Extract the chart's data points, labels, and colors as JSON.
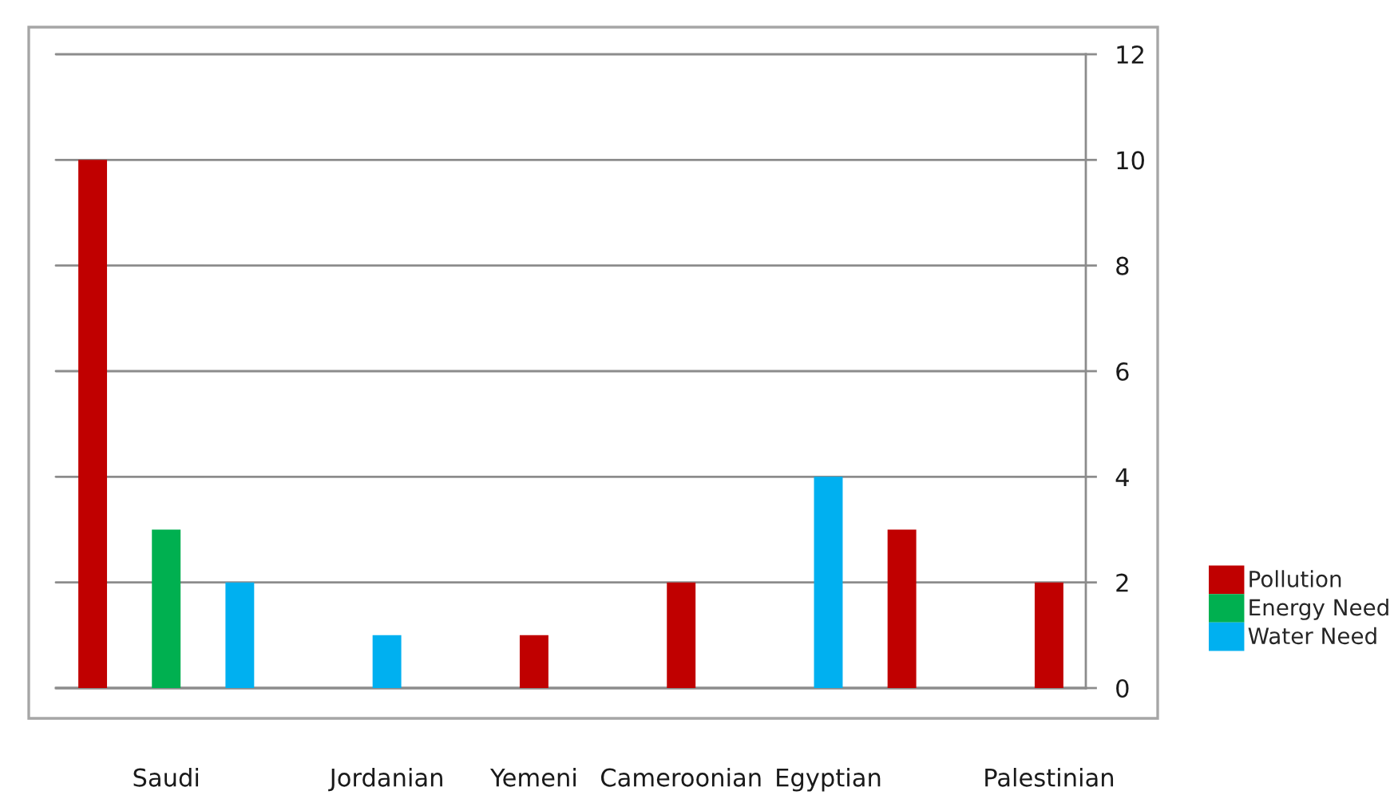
{
  "chart_data": {
    "type": "bar",
    "categories": [
      null,
      "Saudi",
      null,
      null,
      "Jordanian",
      null,
      "Yemeni",
      null,
      "Cameroonian",
      null,
      "Egyptian",
      null,
      null,
      "Palestinian"
    ],
    "series": [
      {
        "name": "Pollution",
        "color": "#c00000",
        "values": [
          10,
          null,
          null,
          null,
          null,
          null,
          1,
          null,
          2,
          null,
          null,
          3,
          null,
          2
        ]
      },
      {
        "name": "Energy Need",
        "color": "#00b050",
        "values": [
          null,
          3,
          null,
          null,
          null,
          null,
          null,
          null,
          null,
          null,
          null,
          null,
          null,
          null
        ]
      },
      {
        "name": "Water Need",
        "color": "#00b0f0",
        "values": [
          null,
          null,
          2,
          null,
          1,
          null,
          null,
          null,
          null,
          null,
          4,
          null,
          null,
          null
        ]
      }
    ],
    "ylim": [
      0,
      12
    ],
    "yticks": [
      0,
      2,
      4,
      6,
      8,
      10,
      12
    ],
    "grid": "y",
    "legend": "right"
  }
}
